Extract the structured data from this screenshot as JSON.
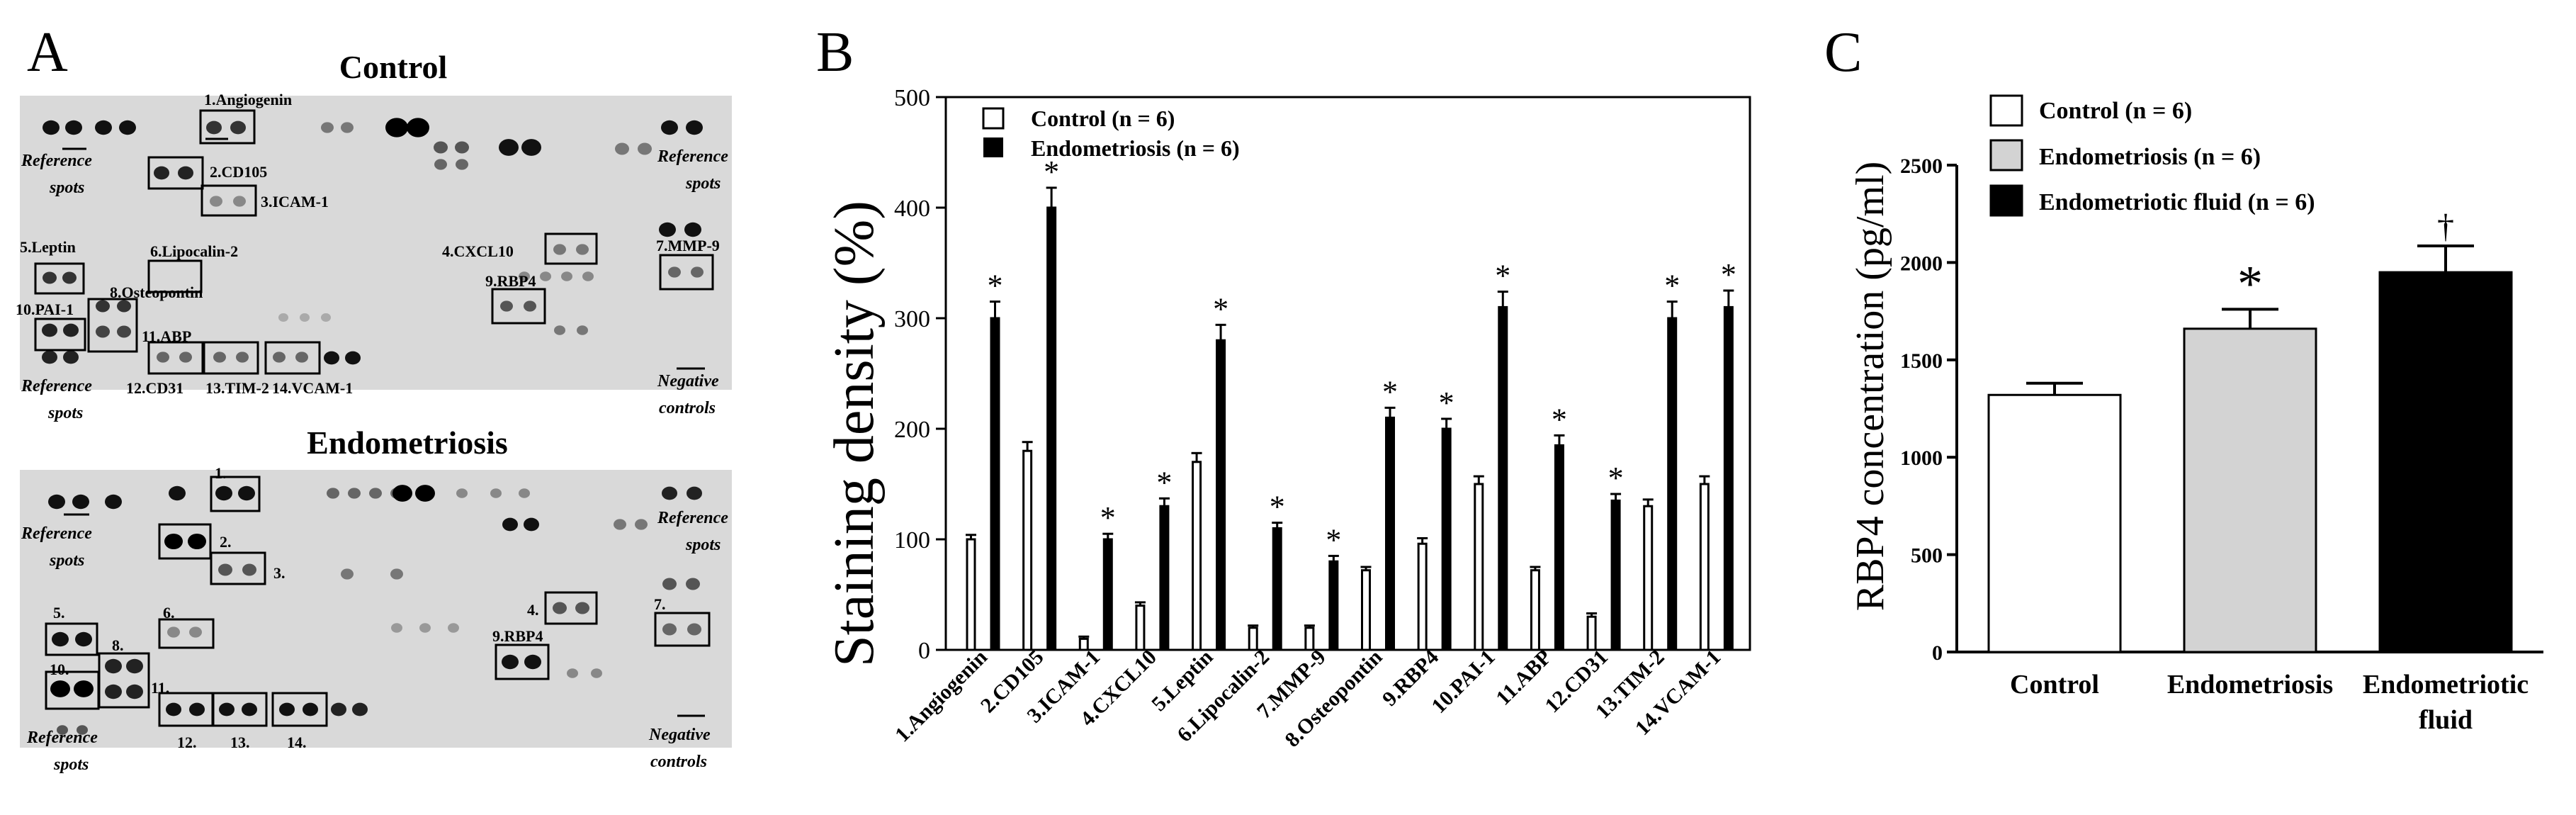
{
  "panels": {
    "a": "A",
    "b": "B",
    "c": "C"
  },
  "array": {
    "control_title": "Control",
    "endo_title": "Endometriosis",
    "reference_spots": "Reference spots",
    "reference_line1": "Reference",
    "reference_line2": "spots",
    "negative_line1": "Negative",
    "negative_line2": "controls",
    "control_labels": [
      "1.Angiogenin",
      "2.CD105",
      "3.ICAM-1",
      "4.CXCL10",
      "5.Leptin",
      "6.Lipocalin-2",
      "7.MMP-9",
      "8.Osteopontin",
      "9.RBP4",
      "10.PAI-1",
      "11.ABP",
      "12.CD31",
      "13.TIM-2",
      "14.VCAM-1"
    ],
    "endo_labels": [
      "1.",
      "2.",
      "3.",
      "4.",
      "5.",
      "6.",
      "7.",
      "8.",
      "9.RBP4",
      "10.",
      "11.",
      "12.",
      "13.",
      "14."
    ]
  },
  "chart_data": [
    {
      "type": "bar",
      "title": "",
      "ylabel": "Staining density (%)",
      "xlabel": "",
      "ylim": [
        0,
        500
      ],
      "yticks": [
        0,
        100,
        200,
        300,
        400,
        500
      ],
      "categories": [
        "1.Angiogenin",
        "2.CD105",
        "3.ICAM-1",
        "4.CXCL10",
        "5.Leptin",
        "6.Lipocalin-2",
        "7.MMP-9",
        "8.Osteopontin",
        "9.RBP4",
        "10.PAI-1",
        "11.ABP",
        "12.CD31",
        "13.TIM-2",
        "14.VCAM-1"
      ],
      "series": [
        {
          "name": "Control (n = 6)",
          "color": "#ffffff",
          "values": [
            100,
            180,
            10,
            40,
            170,
            20,
            20,
            72,
            96,
            150,
            72,
            30,
            130,
            150
          ],
          "errors": [
            4,
            8,
            2,
            3,
            8,
            2,
            2,
            3,
            5,
            7,
            3,
            3,
            6,
            7
          ]
        },
        {
          "name": "Endometriosis (n = 6)",
          "color": "#000000",
          "values": [
            300,
            400,
            100,
            130,
            280,
            110,
            80,
            210,
            200,
            310,
            185,
            135,
            300,
            310
          ],
          "errors": [
            15,
            18,
            5,
            7,
            14,
            5,
            5,
            9,
            9,
            14,
            9,
            6,
            15,
            15
          ]
        }
      ],
      "significance_marker": "*",
      "legend": "top-left"
    },
    {
      "type": "bar",
      "title": "",
      "ylabel": "RBP4 concentration (pg/ml)",
      "xlabel": "",
      "ylim": [
        0,
        2500
      ],
      "yticks": [
        0,
        500,
        1000,
        1500,
        2000,
        2500
      ],
      "categories": [
        "Control",
        "Endometriosis",
        "Endometriotic fluid"
      ],
      "values": [
        1320,
        1660,
        1950
      ],
      "errors": [
        60,
        100,
        135
      ],
      "colors": [
        "#ffffff",
        "#d3d3d3",
        "#000000"
      ],
      "legend_entries": [
        "Control (n = 6)",
        "Endometriosis (n = 6)",
        "Endometriotic fluid (n = 6)"
      ],
      "markers": [
        "",
        "*",
        "†"
      ],
      "legend": "top-left"
    }
  ]
}
